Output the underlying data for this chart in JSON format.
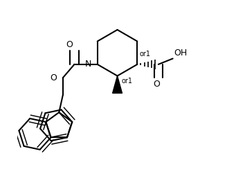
{
  "background": "#ffffff",
  "line_color": "#000000",
  "line_width": 1.5,
  "bond_width": 1.5,
  "fig_width": 3.28,
  "fig_height": 2.8,
  "dpi": 100,
  "labels": {
    "N": {
      "text": "N",
      "fontsize": 9
    },
    "O_carbonyl1": {
      "text": "O",
      "fontsize": 9
    },
    "O_ester": {
      "text": "O",
      "fontsize": 9
    },
    "O_carbonyl2": {
      "text": "O",
      "fontsize": 9
    },
    "OH": {
      "text": "OH",
      "fontsize": 9
    },
    "or1_top": {
      "text": "or1",
      "fontsize": 7
    },
    "or1_bot": {
      "text": "or1",
      "fontsize": 7
    }
  }
}
